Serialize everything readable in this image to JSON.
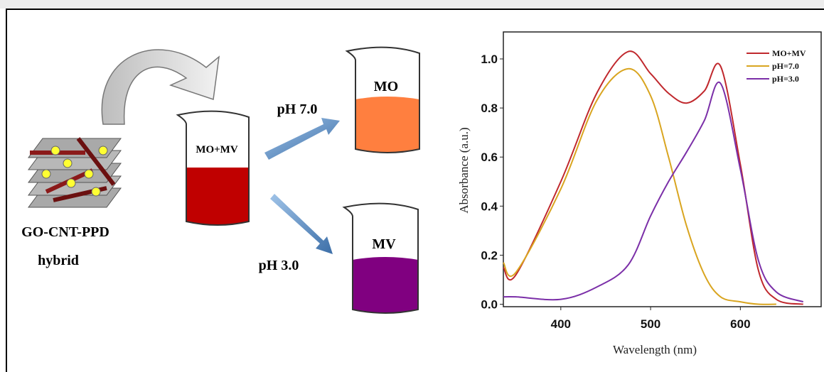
{
  "diagram": {
    "hybrid_label": "GO-CNT-PPD",
    "hybrid_sublabel": "hybrid",
    "mixture_label": "MO+MV",
    "upper_condition": "pH 7.0",
    "lower_condition": "pH 3.0",
    "upper_product": "MO",
    "lower_product": "MV"
  },
  "chart_data": {
    "type": "line",
    "x_label": "Wavelength (nm)",
    "y_label": "Absorbance (a.u.)",
    "x": [
      336,
      350,
      400,
      440,
      475,
      500,
      520,
      540,
      560,
      578,
      600,
      620,
      640,
      670
    ],
    "series": [
      {
        "name": "MO+MV",
        "color": "#c0282d",
        "values": [
          0.15,
          0.12,
          0.5,
          0.86,
          1.03,
          0.94,
          0.86,
          0.82,
          0.87,
          0.97,
          0.57,
          0.14,
          0.02,
          0.0
        ]
      },
      {
        "name": "pH=7.0",
        "color": "#d9a520",
        "values": [
          0.17,
          0.13,
          0.47,
          0.83,
          0.96,
          0.85,
          0.6,
          0.32,
          0.12,
          0.03,
          0.01,
          0.0,
          0.0,
          null
        ]
      },
      {
        "name": "pH=3.0",
        "color": "#7b2fa8",
        "values": [
          0.03,
          0.03,
          0.02,
          0.07,
          0.16,
          0.36,
          0.5,
          0.62,
          0.75,
          0.9,
          0.55,
          0.18,
          0.05,
          0.01
        ]
      }
    ],
    "xlim": [
      336,
      690
    ],
    "ylim": [
      -0.01,
      1.11
    ],
    "xticks": [
      400,
      500,
      600
    ],
    "yticks": [
      {
        "value": 0,
        "label": "0.0"
      },
      0.2,
      0.4,
      0.6,
      0.8,
      {
        "value": 1,
        "label": "1.0"
      }
    ],
    "legend": "upper right"
  }
}
